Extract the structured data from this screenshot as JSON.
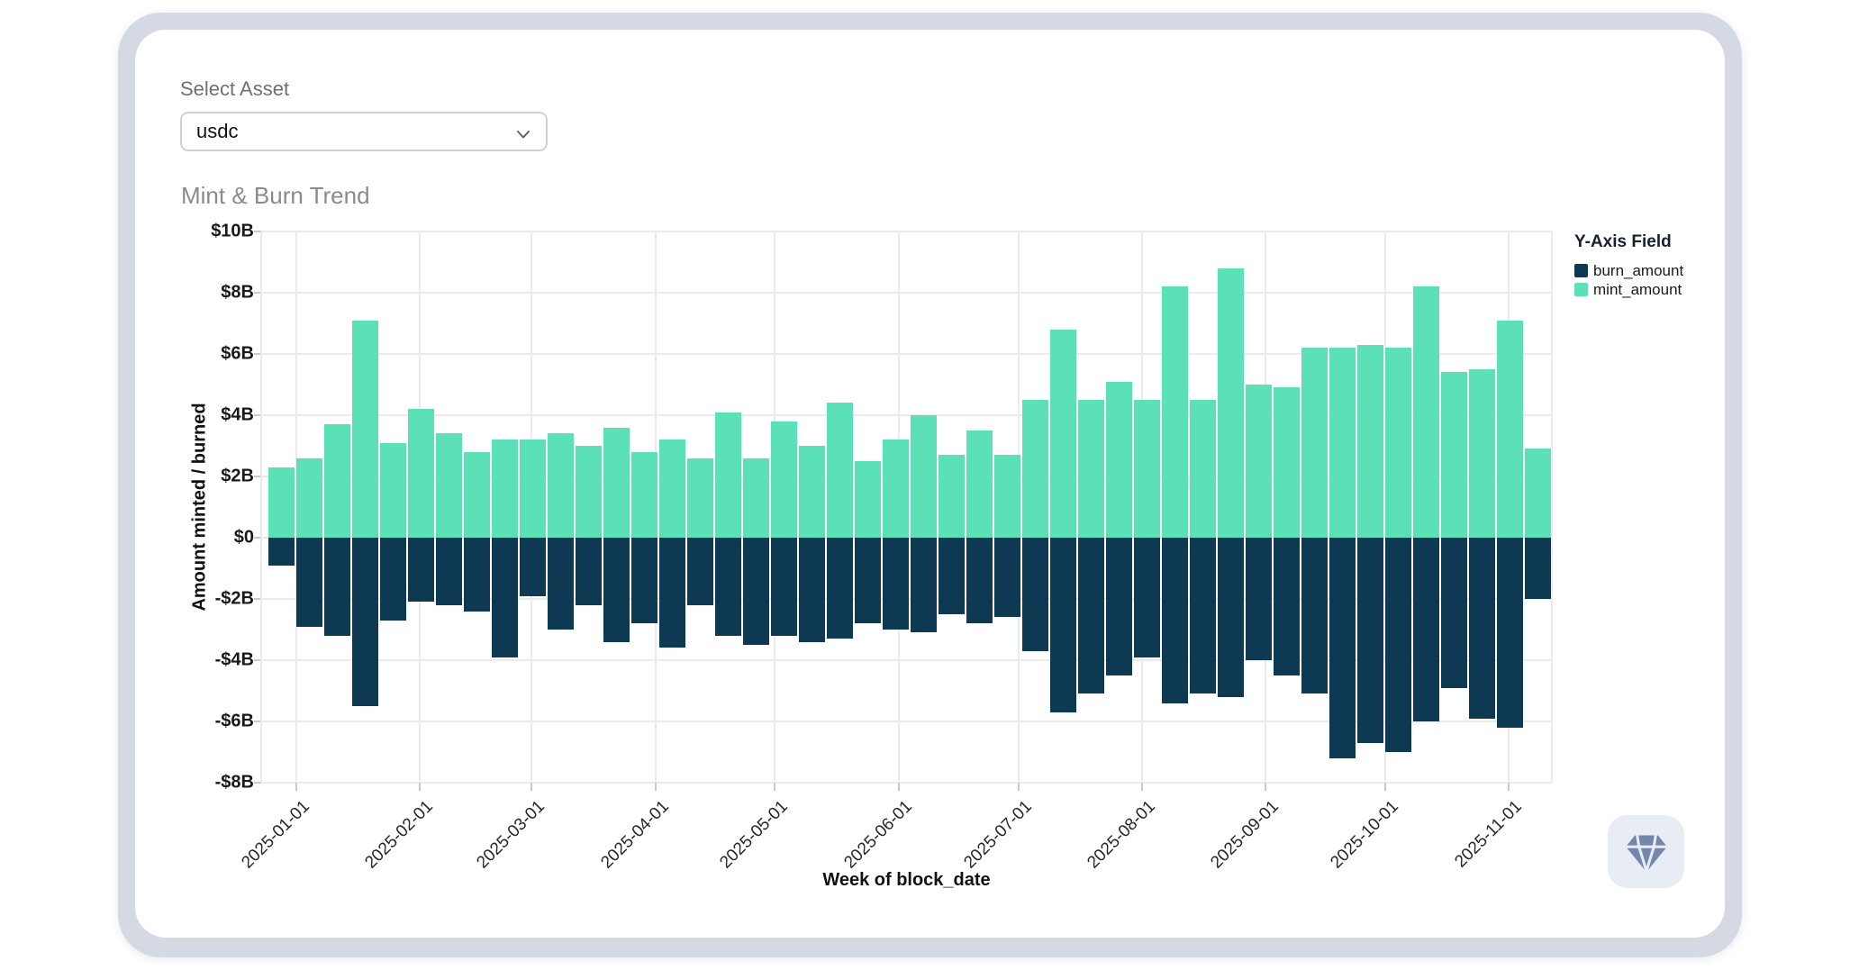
{
  "select_asset": {
    "label": "Select Asset",
    "value": "usdc"
  },
  "chart_title": "Mint & Burn Trend",
  "chart_data": {
    "type": "bar",
    "subtype": "diverging-stacked-weekly",
    "title": "Mint & Burn Trend",
    "xlabel": "Week of block_date",
    "ylabel": "Amount minted / burned",
    "y_unit": "billions of dollars",
    "ylim_b": [
      -8,
      10
    ],
    "grid": true,
    "y_ticks": [
      {
        "label": "$10B",
        "value_b": 10
      },
      {
        "label": "$8B",
        "value_b": 8
      },
      {
        "label": "$6B",
        "value_b": 6
      },
      {
        "label": "$4B",
        "value_b": 4
      },
      {
        "label": "$2B",
        "value_b": 2
      },
      {
        "label": "$0",
        "value_b": 0
      },
      {
        "label": "-$2B",
        "value_b": -2
      },
      {
        "label": "-$4B",
        "value_b": -4
      },
      {
        "label": "-$6B",
        "value_b": -6
      },
      {
        "label": "-$8B",
        "value_b": -8
      }
    ],
    "x_ticks": [
      {
        "label": "2025-01-01",
        "week_offset": 1.0
      },
      {
        "label": "2025-02-01",
        "week_offset": 5.43
      },
      {
        "label": "2025-03-01",
        "week_offset": 9.43
      },
      {
        "label": "2025-04-01",
        "week_offset": 13.86
      },
      {
        "label": "2025-05-01",
        "week_offset": 18.14
      },
      {
        "label": "2025-06-01",
        "week_offset": 22.57
      },
      {
        "label": "2025-07-01",
        "week_offset": 26.86
      },
      {
        "label": "2025-08-01",
        "week_offset": 31.29
      },
      {
        "label": "2025-09-01",
        "week_offset": 35.71
      },
      {
        "label": "2025-10-01",
        "week_offset": 40.0
      },
      {
        "label": "2025-11-01",
        "week_offset": 44.43
      }
    ],
    "weeks_count": 46,
    "series": [
      {
        "name": "burn_amount",
        "color": "#0d3a52",
        "values_b": [
          -0.9,
          -2.9,
          -3.2,
          -5.5,
          -2.7,
          -2.1,
          -2.2,
          -2.4,
          -3.9,
          -1.9,
          -3.0,
          -2.2,
          -3.4,
          -2.8,
          -3.6,
          -2.2,
          -3.2,
          -3.5,
          -3.2,
          -3.4,
          -3.3,
          -2.8,
          -3.0,
          -3.1,
          -2.5,
          -2.8,
          -2.6,
          -3.7,
          -5.7,
          -5.1,
          -4.5,
          -3.9,
          -5.4,
          -5.1,
          -5.2,
          -4.0,
          -4.5,
          -5.1,
          -7.2,
          -6.7,
          -7.0,
          -6.0,
          -4.9,
          -5.9,
          -6.2,
          -2.0
        ]
      },
      {
        "name": "mint_amount",
        "color": "#5ce0b8",
        "values_b": [
          2.3,
          2.6,
          3.7,
          7.1,
          3.1,
          4.2,
          3.4,
          2.8,
          3.2,
          3.2,
          3.4,
          3.0,
          3.6,
          2.8,
          3.2,
          2.6,
          4.1,
          2.6,
          3.8,
          3.0,
          4.4,
          2.5,
          3.2,
          4.0,
          2.7,
          3.5,
          2.7,
          4.5,
          6.8,
          4.5,
          5.1,
          4.5,
          8.2,
          4.5,
          8.8,
          5.0,
          4.9,
          6.2,
          6.2,
          6.3,
          6.2,
          8.2,
          5.4,
          5.5,
          7.1,
          2.9
        ]
      }
    ],
    "legend": {
      "title": "Y-Axis Field",
      "position": "right",
      "entries": [
        "burn_amount",
        "mint_amount"
      ]
    }
  },
  "icons": {
    "select_chevron": "chevron-down",
    "corner_button": "gem"
  },
  "colors": {
    "mint": "#5ce0b8",
    "burn": "#0d3a52",
    "card_ring": "#d4d9e3",
    "button_bg": "#e8ecf4",
    "icon_slate": "#7487ab",
    "gridline": "#ebebeb"
  }
}
